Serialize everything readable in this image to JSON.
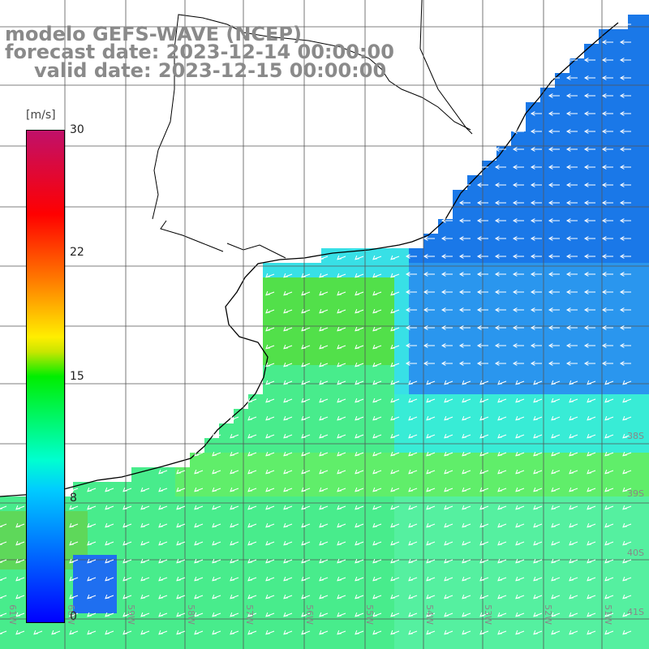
{
  "title": {
    "line1": "modelo GEFS-WAVE (NCEP)",
    "line2": "forecast date: 2023-12-14 00:00:00",
    "line3": "valid date: 2023-12-15 00:00:00"
  },
  "colorbar": {
    "unit": "[m/s]",
    "min": 0,
    "max": 30,
    "ticks": [
      "0",
      "8",
      "15",
      "22",
      "30"
    ],
    "tick_values": [
      0,
      8,
      15,
      22,
      30
    ]
  },
  "map": {
    "variable": "wind speed with direction arrows",
    "lat_labels": [
      "38S",
      "39S",
      "40S",
      "41S"
    ],
    "lon_labels": [
      "61W",
      "60W",
      "59W",
      "58W",
      "57W",
      "56W",
      "55W",
      "54W",
      "53W",
      "52W",
      "51W"
    ],
    "colors": {
      "land": "#ffffff",
      "coast": "#000000",
      "grid": "#555555",
      "arrow": "#ffffff"
    }
  }
}
